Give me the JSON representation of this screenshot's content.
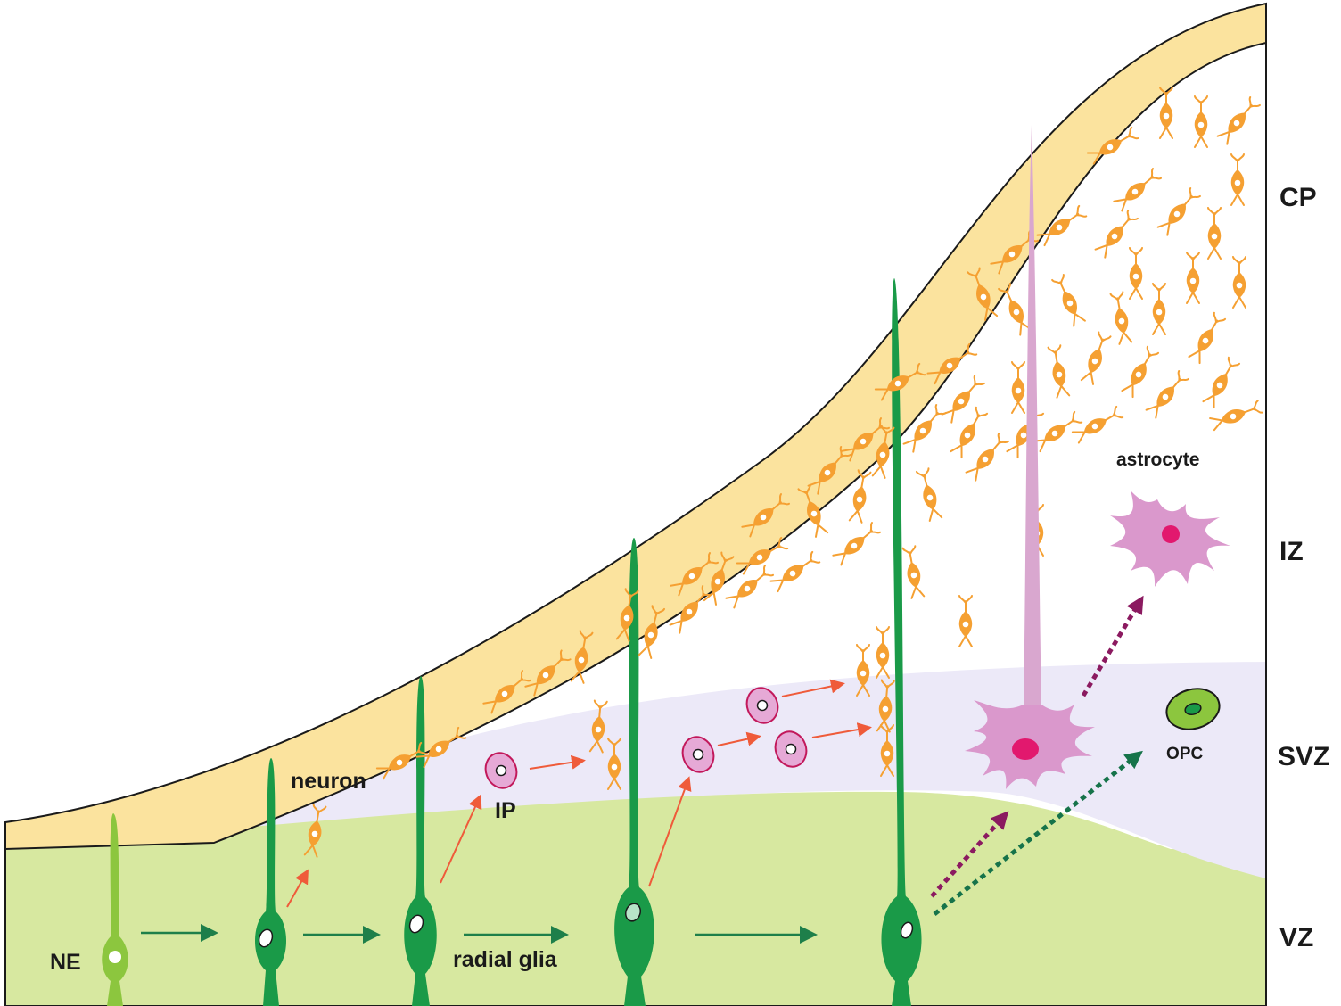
{
  "zones": [
    {
      "key": "cp",
      "label": "CP"
    },
    {
      "key": "iz",
      "label": "IZ"
    },
    {
      "key": "svz",
      "label": "SVZ"
    },
    {
      "key": "vz",
      "label": "VZ"
    }
  ],
  "cell_labels": {
    "ne": "NE",
    "neuron": "neuron",
    "ip": "IP",
    "radial_glia": "radial glia",
    "astrocyte": "astrocyte",
    "opc": "OPC"
  },
  "colors": {
    "vz": "#d7e8a0",
    "svz": "#ece9f8",
    "pia": "#fbe39e",
    "neuron": "#f5a032",
    "radial_glia": "#1a9a48",
    "neuroepithelium": "#8cc63e",
    "ip": "#e6a9d6",
    "astrocyte": "#da98cc",
    "astrocyte_nucleus": "#e2186e",
    "opc": "#8cc63e",
    "green_arrow": "#1e7f4a",
    "red_arrow": "#ef5b3a",
    "magenta_arrow": "#8b1a60",
    "dark_green_arrow": "#16734a"
  }
}
